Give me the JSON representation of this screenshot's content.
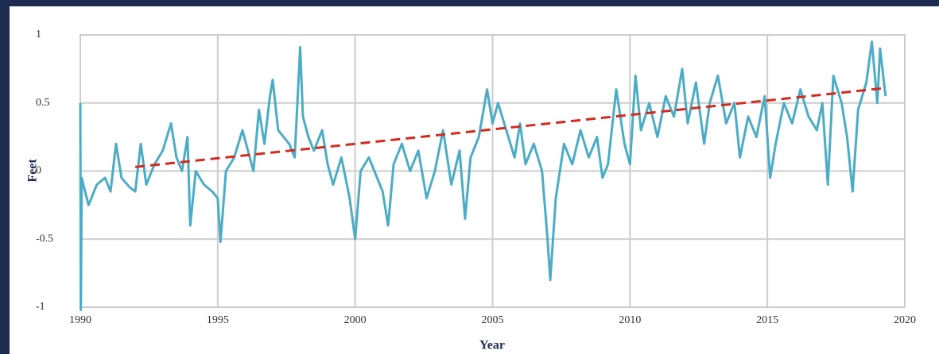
{
  "chart_data": {
    "type": "line",
    "x_label": "Year",
    "y_label": "Feet",
    "xlim": [
      1990,
      2020
    ],
    "xticks": [
      1990,
      1995,
      2000,
      2005,
      2010,
      2015,
      2020
    ],
    "ylim": [
      -1,
      1
    ],
    "yticks": [
      -1,
      -0.5,
      0,
      0.5,
      1
    ],
    "grid": true,
    "series": [
      {
        "color": "#4bacc6",
        "style": "solid",
        "x": [
          1990.0,
          1990.02,
          1990.05,
          1990.3,
          1990.6,
          1990.9,
          1991.1,
          1991.3,
          1991.5,
          1991.8,
          1992.0,
          1992.2,
          1992.4,
          1992.7,
          1993.0,
          1993.3,
          1993.5,
          1993.7,
          1993.9,
          1994.0,
          1994.2,
          1994.5,
          1994.8,
          1995.0,
          1995.1,
          1995.3,
          1995.6,
          1995.9,
          1996.1,
          1996.3,
          1996.5,
          1996.7,
          1996.9,
          1997.0,
          1997.2,
          1997.4,
          1997.6,
          1997.8,
          1998.0,
          1998.1,
          1998.3,
          1998.5,
          1998.8,
          1999.0,
          1999.2,
          1999.5,
          1999.8,
          2000.0,
          2000.2,
          2000.5,
          2000.8,
          2001.0,
          2001.2,
          2001.4,
          2001.7,
          2002.0,
          2002.3,
          2002.6,
          2002.9,
          2003.2,
          2003.5,
          2003.8,
          2004.0,
          2004.2,
          2004.5,
          2004.8,
          2005.0,
          2005.2,
          2005.5,
          2005.8,
          2006.0,
          2006.2,
          2006.5,
          2006.8,
          2007.0,
          2007.1,
          2007.3,
          2007.6,
          2007.9,
          2008.2,
          2008.5,
          2008.8,
          2009.0,
          2009.2,
          2009.5,
          2009.8,
          2010.0,
          2010.2,
          2010.4,
          2010.7,
          2011.0,
          2011.3,
          2011.6,
          2011.9,
          2012.1,
          2012.4,
          2012.7,
          2012.9,
          2013.2,
          2013.5,
          2013.8,
          2014.0,
          2014.3,
          2014.6,
          2014.9,
          2015.1,
          2015.3,
          2015.6,
          2015.9,
          2016.2,
          2016.5,
          2016.8,
          2017.0,
          2017.2,
          2017.4,
          2017.7,
          2017.9,
          2018.1,
          2018.3,
          2018.6,
          2018.8,
          2019.0,
          2019.1,
          2019.3
        ],
        "values": [
          0.5,
          -1.02,
          -0.05,
          -0.25,
          -0.1,
          -0.05,
          -0.15,
          0.2,
          -0.05,
          -0.12,
          -0.15,
          0.2,
          -0.1,
          0.05,
          0.15,
          0.35,
          0.1,
          0.0,
          0.25,
          -0.4,
          0.0,
          -0.1,
          -0.15,
          -0.2,
          -0.52,
          0.0,
          0.1,
          0.3,
          0.15,
          0.0,
          0.45,
          0.2,
          0.55,
          0.67,
          0.3,
          0.25,
          0.2,
          0.1,
          0.91,
          0.4,
          0.25,
          0.15,
          0.3,
          0.05,
          -0.1,
          0.1,
          -0.2,
          -0.5,
          0.0,
          0.1,
          -0.05,
          -0.15,
          -0.4,
          0.05,
          0.2,
          0.0,
          0.15,
          -0.2,
          0.0,
          0.3,
          -0.1,
          0.15,
          -0.35,
          0.1,
          0.25,
          0.6,
          0.35,
          0.5,
          0.3,
          0.1,
          0.35,
          0.05,
          0.2,
          0.0,
          -0.5,
          -0.8,
          -0.2,
          0.2,
          0.05,
          0.3,
          0.1,
          0.25,
          -0.05,
          0.05,
          0.6,
          0.2,
          0.05,
          0.7,
          0.3,
          0.5,
          0.25,
          0.55,
          0.4,
          0.75,
          0.35,
          0.65,
          0.2,
          0.5,
          0.7,
          0.35,
          0.5,
          0.1,
          0.4,
          0.25,
          0.55,
          -0.05,
          0.2,
          0.5,
          0.35,
          0.6,
          0.4,
          0.3,
          0.5,
          -0.1,
          0.7,
          0.5,
          0.25,
          -0.15,
          0.45,
          0.65,
          0.95,
          0.5,
          0.9,
          0.55
        ]
      },
      {
        "color": "#d42a1e",
        "style": "dashed",
        "x": [
          1992,
          2019.3
        ],
        "values": [
          0.03,
          0.61
        ]
      }
    ]
  }
}
